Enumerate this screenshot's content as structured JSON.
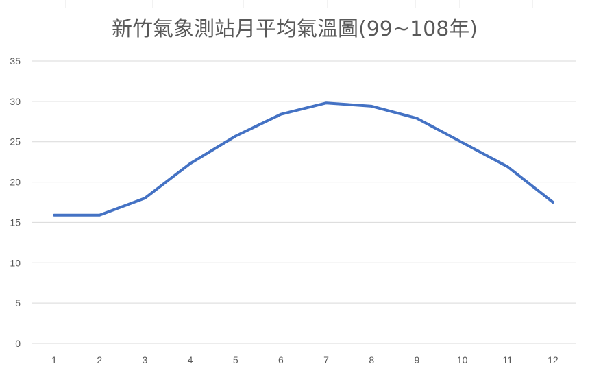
{
  "chart_data": {
    "type": "line",
    "title": "新竹氣象測站月平均氣溫圖(99~108年)",
    "xlabel": "",
    "ylabel": "",
    "categories": [
      "1",
      "2",
      "3",
      "4",
      "5",
      "6",
      "7",
      "8",
      "9",
      "10",
      "11",
      "12"
    ],
    "series": [
      {
        "values": [
          15.9,
          15.9,
          18.0,
          22.3,
          25.7,
          28.4,
          29.8,
          29.4,
          27.9,
          24.9,
          21.9,
          17.5
        ]
      }
    ],
    "ylim": [
      0,
      35
    ],
    "yticks": [
      "0",
      "5",
      "10",
      "15",
      "20",
      "25",
      "30",
      "35"
    ],
    "grid": true,
    "legend": "none",
    "colors": {
      "series": "#4472c4",
      "grid": "#d9d9d9",
      "text": "#595959"
    }
  }
}
